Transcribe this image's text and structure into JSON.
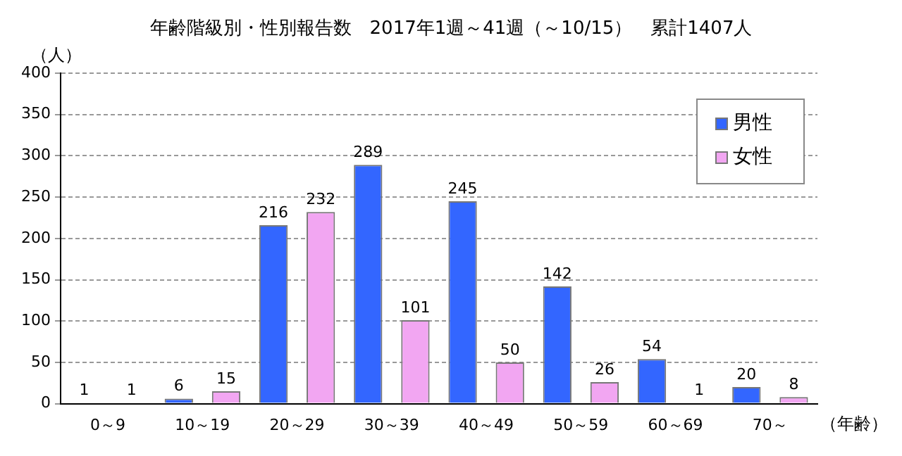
{
  "chart_data": {
    "type": "bar",
    "title": "年齢階級別・性別報告数　2017年1週～41週（～10/15）　累計1407人",
    "ylabel": "（人）",
    "xlabel": "（年齢）",
    "categories": [
      "0～9",
      "10～19",
      "20～29",
      "30～39",
      "40～49",
      "50～59",
      "60～69",
      "70～"
    ],
    "series": [
      {
        "name": "男性",
        "color": "#3366ff",
        "values": [
          1,
          6,
          216,
          289,
          245,
          142,
          54,
          20
        ]
      },
      {
        "name": "女性",
        "color": "#f2a6f2",
        "values": [
          1,
          15,
          232,
          101,
          50,
          26,
          1,
          8
        ]
      }
    ],
    "ylim": [
      0,
      400
    ],
    "yticks": [
      0,
      50,
      100,
      150,
      200,
      250,
      300,
      350,
      400
    ],
    "grid": "y",
    "legend": "top right",
    "data_labels": true
  }
}
